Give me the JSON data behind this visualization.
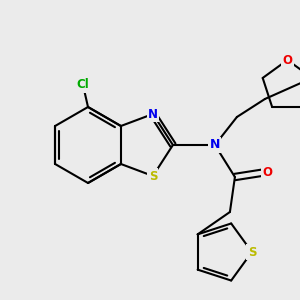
{
  "background_color": "#ebebeb",
  "atom_colors": {
    "C": "#000000",
    "N": "#0000ee",
    "O": "#ee0000",
    "S": "#bbbb00",
    "Cl": "#00aa00"
  },
  "bond_color": "#000000",
  "bond_width": 1.5,
  "figsize": [
    3.0,
    3.0
  ],
  "dpi": 100
}
